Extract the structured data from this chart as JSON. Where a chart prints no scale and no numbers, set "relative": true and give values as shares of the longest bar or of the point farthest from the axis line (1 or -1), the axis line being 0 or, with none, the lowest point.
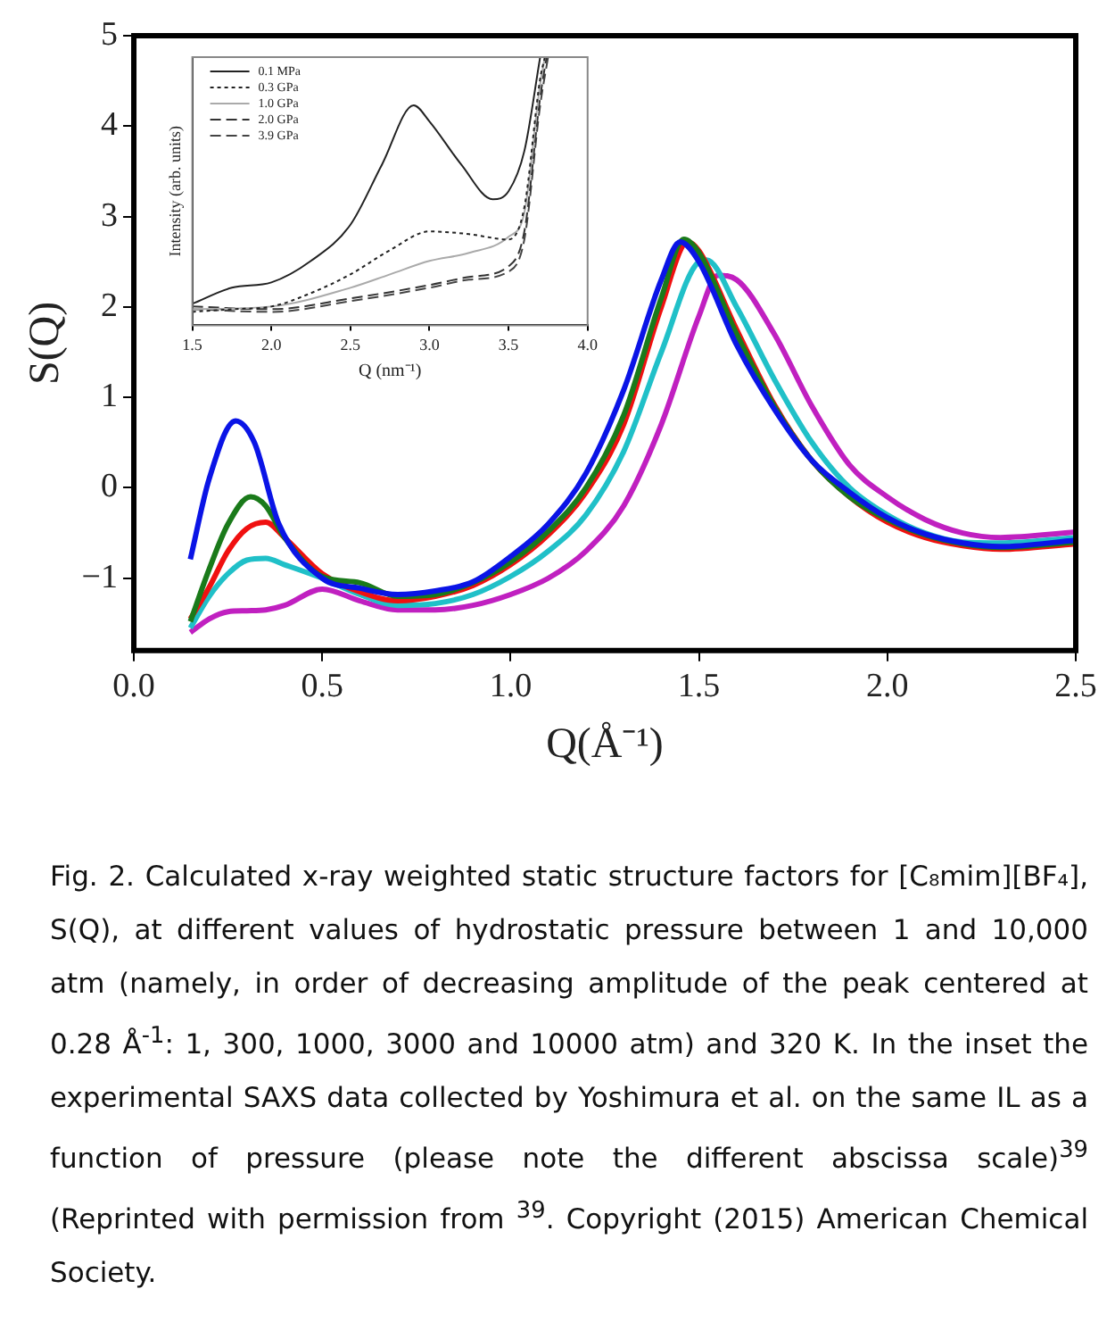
{
  "chart_data": [
    {
      "type": "line",
      "xlabel": "Q(Å⁻¹)",
      "ylabel": "S(Q)",
      "xlim": [
        0,
        2.5
      ],
      "ylim": [
        -1.8,
        5
      ],
      "xticks": [
        {
          "value": 0,
          "label": "0.0"
        },
        0.5,
        {
          "value": 1,
          "label": "1.0"
        },
        1.5,
        {
          "value": 2,
          "label": "2.0"
        },
        2.5
      ],
      "yticks": [
        {
          "value": -1,
          "label": "−1"
        },
        0,
        1,
        2,
        3,
        4,
        5
      ],
      "grid": false,
      "legend": false,
      "marker": "none",
      "line_style": "solid",
      "annotations": [
        "Fig. 2. Calculated x-ray weighted static structure factors for [C₈mim][BF₄], S(Q), at different values of hydrostatic pressure between 1 and 10,000 atm (namely, in order of decreasing amplitude of the peak centered at 0.28 Å$^{-1}$: 1, 300, 1000, 3000 and 10000 atm) and 320 K.  In the inset the experimental SAXS data collected by Yoshimura et al. on the same IL as a function of pressure (please note the different abscissa scale)$^{39}$ (Reprinted with permission from $^{39}$. Copyright (2015) American Chemical Society."
      ],
      "x": [
        0.15,
        0.2,
        0.27,
        0.32,
        0.385,
        0.5,
        0.6,
        0.7,
        0.8,
        0.9,
        1.0,
        1.1,
        1.2,
        1.3,
        1.4,
        1.45,
        1.5,
        1.6,
        1.7,
        1.8,
        1.9,
        2.0,
        2.1,
        2.2,
        2.3,
        2.5
      ],
      "series": [
        {
          "color": "#0a14e6",
          "values": [
            -0.79,
            0.1,
            0.74,
            0.5,
            -0.4,
            -1.0,
            -1.11,
            -1.18,
            -1.14,
            -1.04,
            -0.76,
            -0.4,
            0.16,
            1.08,
            2.3,
            2.72,
            2.5,
            1.58,
            0.87,
            0.3,
            -0.05,
            -0.33,
            -0.51,
            -0.61,
            -0.65,
            -0.58
          ]
        },
        {
          "color": "#1a7a1a",
          "x": [
            0.15,
            0.2,
            0.25,
            0.31,
            0.35,
            0.4,
            0.5,
            0.6,
            0.7,
            0.8,
            0.9,
            1.0,
            1.1,
            1.2,
            1.3,
            1.4,
            1.46,
            1.5,
            1.6,
            1.7,
            1.8,
            1.9,
            2.0,
            2.1,
            2.2,
            2.3,
            2.5
          ],
          "values": [
            -1.48,
            -0.9,
            -0.4,
            -0.1,
            -0.2,
            -0.55,
            -0.98,
            -1.05,
            -1.2,
            -1.18,
            -1.05,
            -0.82,
            -0.48,
            0.0,
            0.8,
            2.1,
            2.75,
            2.6,
            1.7,
            0.9,
            0.3,
            -0.1,
            -0.35,
            -0.52,
            -0.62,
            -0.66,
            -0.6
          ]
        },
        {
          "color": "#f01010",
          "x": [
            0.15,
            0.2,
            0.25,
            0.3,
            0.35,
            0.4,
            0.5,
            0.6,
            0.7,
            0.8,
            0.9,
            1.0,
            1.1,
            1.2,
            1.3,
            1.4,
            1.47,
            1.5,
            1.6,
            1.7,
            1.8,
            1.9,
            2.0,
            2.1,
            2.2,
            2.3,
            2.5
          ],
          "values": [
            -1.45,
            -1.1,
            -0.7,
            -0.45,
            -0.38,
            -0.55,
            -0.95,
            -1.15,
            -1.25,
            -1.2,
            -1.08,
            -0.85,
            -0.52,
            -0.05,
            0.7,
            2.0,
            2.72,
            2.62,
            1.75,
            0.92,
            0.3,
            -0.1,
            -0.38,
            -0.55,
            -0.64,
            -0.68,
            -0.62
          ]
        },
        {
          "color": "#20c0c8",
          "x": [
            0.15,
            0.2,
            0.25,
            0.3,
            0.35,
            0.4,
            0.5,
            0.6,
            0.7,
            0.8,
            0.9,
            1.0,
            1.1,
            1.2,
            1.3,
            1.4,
            1.5,
            1.52,
            1.6,
            1.7,
            1.8,
            1.9,
            2.0,
            2.1,
            2.2,
            2.3,
            2.5
          ],
          "values": [
            -1.55,
            -1.2,
            -0.95,
            -0.8,
            -0.78,
            -0.85,
            -1.0,
            -1.18,
            -1.3,
            -1.28,
            -1.18,
            -0.98,
            -0.7,
            -0.3,
            0.4,
            1.5,
            2.5,
            2.52,
            2.0,
            1.2,
            0.5,
            0.0,
            -0.3,
            -0.5,
            -0.6,
            -0.61,
            -0.55
          ]
        },
        {
          "color": "#c020c0",
          "x": [
            0.15,
            0.2,
            0.25,
            0.3,
            0.35,
            0.4,
            0.5,
            0.6,
            0.7,
            0.8,
            0.9,
            1.0,
            1.1,
            1.2,
            1.3,
            1.4,
            1.5,
            1.55,
            1.6,
            1.7,
            1.8,
            1.9,
            2.0,
            2.1,
            2.2,
            2.3,
            2.5
          ],
          "values": [
            -1.6,
            -1.45,
            -1.37,
            -1.36,
            -1.35,
            -1.3,
            -1.12,
            -1.25,
            -1.35,
            -1.35,
            -1.3,
            -1.18,
            -1.0,
            -0.7,
            -0.2,
            0.7,
            1.9,
            2.35,
            2.3,
            1.7,
            0.9,
            0.25,
            -0.1,
            -0.35,
            -0.5,
            -0.55,
            -0.49
          ]
        }
      ]
    },
    {
      "type": "line",
      "xlabel": "Q (nm⁻¹)",
      "ylabel": "Intensity (arb. units)",
      "relative": true,
      "xlim": [
        1.5,
        4.0
      ],
      "xticks": [
        1.5,
        {
          "value": 2,
          "label": "2.0"
        },
        2.5,
        {
          "value": 3,
          "label": "3.0"
        },
        3.5,
        {
          "value": 4,
          "label": "4.0"
        }
      ],
      "tick_labels": "x",
      "grid": false,
      "legend": "top left",
      "marker": "none",
      "series": [
        {
          "name": "0.1 MPa",
          "color": "#222222",
          "line_style": "solid",
          "x": [
            1.5,
            1.75,
            2.0,
            2.25,
            2.5,
            2.7,
            2.9,
            3.0,
            3.2,
            3.4,
            3.5,
            3.6,
            3.7
          ],
          "values": [
            0.08,
            0.14,
            0.16,
            0.24,
            0.375,
            0.6,
            0.82,
            0.76,
            0.6,
            0.47,
            0.5,
            0.65,
            1.0
          ]
        },
        {
          "name": "0.3 GPa",
          "color": "#222222",
          "line_style": "dotted",
          "x": [
            1.5,
            1.75,
            2.0,
            2.25,
            2.5,
            2.75,
            3.0,
            3.25,
            3.5,
            3.6,
            3.7,
            3.73
          ],
          "values": [
            0.05,
            0.06,
            0.07,
            0.12,
            0.19,
            0.28,
            0.35,
            0.34,
            0.32,
            0.44,
            0.92,
            1.0
          ]
        },
        {
          "name": "1.0 GPa",
          "color": "#aaaaaa",
          "line_style": "solid",
          "x": [
            1.5,
            2.0,
            2.5,
            2.75,
            3.0,
            3.25,
            3.5,
            3.6,
            3.7,
            3.73
          ],
          "values": [
            0.06,
            0.07,
            0.14,
            0.19,
            0.24,
            0.27,
            0.33,
            0.42,
            0.9,
            1.0
          ]
        },
        {
          "name": "2.0 GPa",
          "color": "#333333",
          "line_style": "dashed",
          "x": [
            1.5,
            2.0,
            2.5,
            3.0,
            3.25,
            3.5,
            3.6,
            3.7,
            3.74
          ],
          "values": [
            0.07,
            0.06,
            0.1,
            0.15,
            0.18,
            0.22,
            0.35,
            0.85,
            1.0
          ]
        },
        {
          "name": "3.9 GPa",
          "color": "#444444",
          "line_style": "dashed",
          "x": [
            1.5,
            2.0,
            2.5,
            3.0,
            3.25,
            3.5,
            3.6,
            3.7,
            3.75
          ],
          "values": [
            0.06,
            0.05,
            0.09,
            0.14,
            0.17,
            0.2,
            0.32,
            0.82,
            1.0
          ]
        }
      ]
    }
  ]
}
